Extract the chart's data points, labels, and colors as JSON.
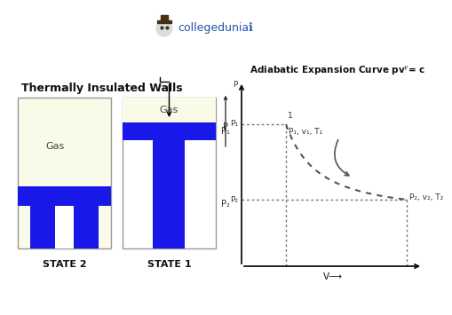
{
  "bg_color": "#ffffff",
  "title_left": "Thermally Insulated Walls",
  "state2_label": "STATE 2",
  "state1_label": "STATE 1",
  "gas_label": "Gas",
  "xlabel": "V⟶",
  "cream_color": "#FAFAE8",
  "blue_color": "#1818E8",
  "box_border": "#999999",
  "logo_text": "collegeduniaℹ",
  "curve_color": "#555555",
  "dot_line_color": "#777777",
  "point1_label": "P₁, v₁, T₁",
  "point2_label": "P₂, v₂, T₂"
}
